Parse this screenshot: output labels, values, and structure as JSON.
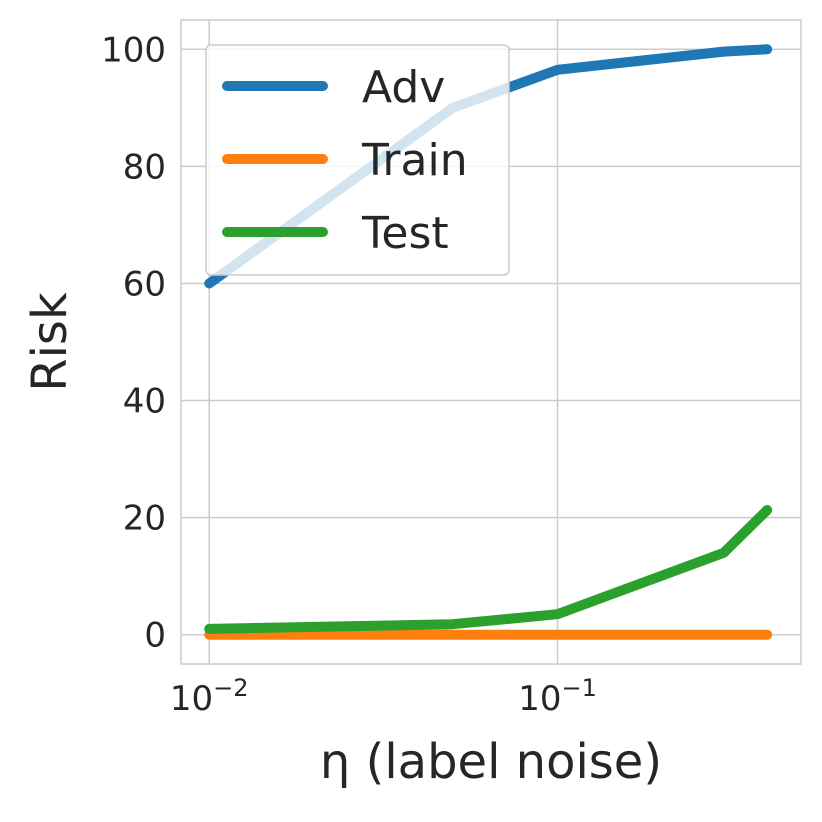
{
  "chart_data": {
    "type": "line",
    "title": "",
    "xlabel": "η (label noise)",
    "ylabel": "Risk",
    "xscale": "log",
    "xlim": [
      0.0083,
      0.5
    ],
    "ylim": [
      -5,
      105
    ],
    "x_ticks": [
      {
        "value": 0.01,
        "base": "10",
        "exp": "−2"
      },
      {
        "value": 0.1,
        "base": "10",
        "exp": "−1"
      }
    ],
    "y_ticks": [
      0,
      20,
      40,
      60,
      80,
      100
    ],
    "grid": true,
    "legend": {
      "position": "top-left"
    },
    "x": [
      0.01,
      0.05,
      0.1,
      0.3,
      0.4
    ],
    "series": [
      {
        "name": "Adv",
        "color": "#1f77b4",
        "values": [
          60,
          90,
          96.5,
          99.6,
          100
        ]
      },
      {
        "name": "Train",
        "color": "#ff7f0e",
        "values": [
          0,
          0,
          0,
          0,
          0
        ]
      },
      {
        "name": "Test",
        "color": "#2ca02c",
        "values": [
          1,
          1.8,
          3.5,
          14,
          21.3
        ]
      }
    ]
  }
}
